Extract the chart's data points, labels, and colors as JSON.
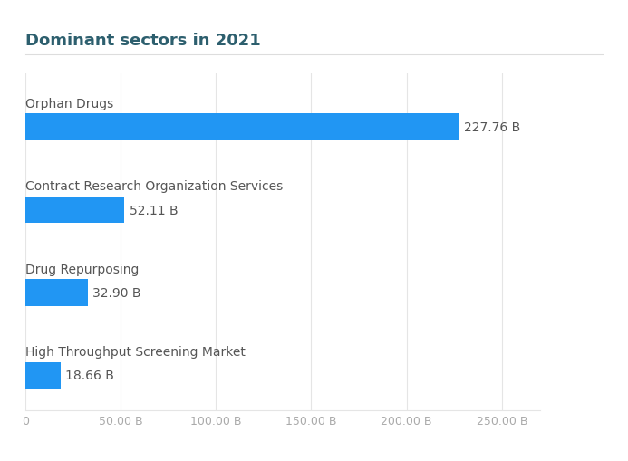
{
  "title": "Dominant sectors in 2021",
  "categories": [
    "High Throughput Screening Market",
    "Drug Repurposing",
    "Contract Research Organization Services",
    "Orphan Drugs"
  ],
  "values": [
    18.66,
    32.9,
    52.11,
    227.76
  ],
  "labels": [
    "18.66 B",
    "32.90 B",
    "52.11 B",
    "227.76 B"
  ],
  "bar_color": "#2196F3",
  "background_color": "#ffffff",
  "title_color": "#2d5f6e",
  "label_color": "#555555",
  "tick_color": "#aaaaaa",
  "grid_color": "#e5e5e5",
  "title_line_color": "#dddddd",
  "xlim": [
    0,
    270
  ],
  "xticks": [
    0,
    50,
    100,
    150,
    200,
    250
  ],
  "xtick_labels": [
    "0",
    "50.00 B",
    "100.00 B",
    "150.00 B",
    "200.00 B",
    "250.00 B"
  ],
  "title_fontsize": 13,
  "cat_label_fontsize": 10,
  "val_label_fontsize": 10,
  "tick_fontsize": 9,
  "bar_height": 0.32
}
